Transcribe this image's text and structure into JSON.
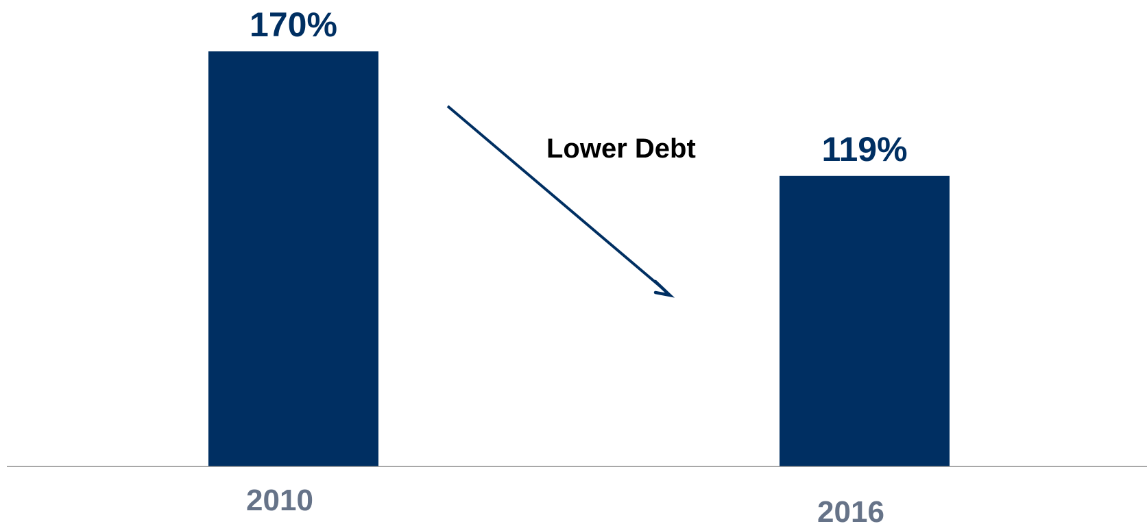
{
  "chart_data": {
    "type": "bar",
    "categories": [
      "2010",
      "2016"
    ],
    "values": [
      170,
      119
    ],
    "value_labels": [
      "170%",
      "119%"
    ],
    "title": "",
    "xlabel": "",
    "ylabel": "",
    "ylim": [
      0,
      170
    ],
    "grid": false,
    "legend": "none",
    "annotation": {
      "text": "Lower Debt",
      "kind": "downward-arrow"
    },
    "colors": {
      "bar": "#002F62",
      "value_label": "#002F62",
      "tick_label": "#667388",
      "axis": "#8C8C8C",
      "annotation_text": "#000000",
      "arrow": "#002F62"
    }
  }
}
